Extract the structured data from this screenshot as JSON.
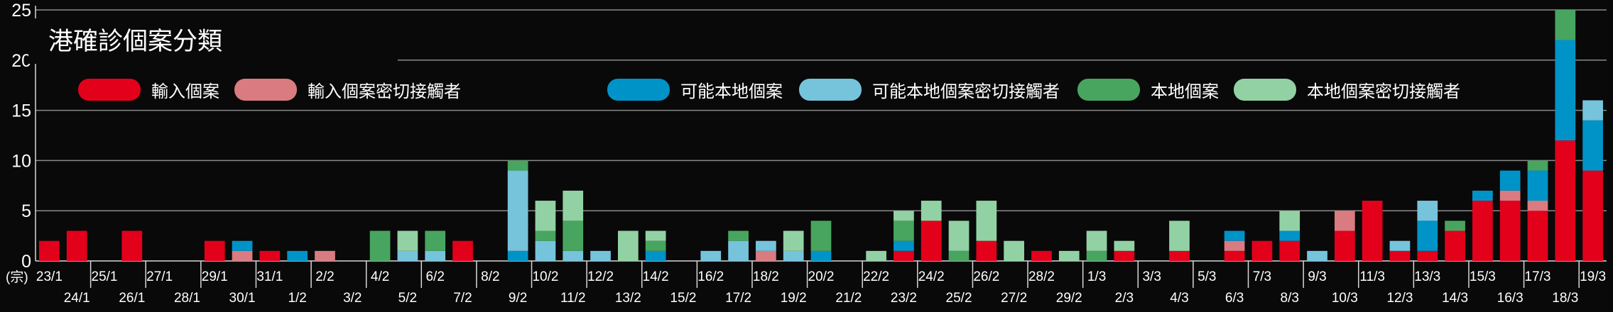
{
  "chart_data": {
    "type": "bar",
    "stacked": true,
    "title": "港確診個案分類",
    "unit_label": "(宗)",
    "ylim": [
      0,
      25
    ],
    "yticks": [
      0,
      5,
      10,
      15,
      20,
      25
    ],
    "grid": true,
    "legend_position": "top",
    "categories": [
      "23/1",
      "24/1",
      "25/1",
      "26/1",
      "27/1",
      "28/1",
      "29/1",
      "30/1",
      "31/1",
      "1/2",
      "2/2",
      "3/2",
      "4/2",
      "5/2",
      "6/2",
      "7/2",
      "8/2",
      "9/2",
      "10/2",
      "11/2",
      "12/2",
      "13/2",
      "14/2",
      "15/2",
      "16/2",
      "17/2",
      "18/2",
      "19/2",
      "20/2",
      "21/2",
      "22/2",
      "23/2",
      "24/2",
      "25/2",
      "26/2",
      "27/2",
      "28/2",
      "29/2",
      "1/3",
      "2/3",
      "3/3",
      "4/3",
      "5/3",
      "6/3",
      "7/3",
      "8/3",
      "9/3",
      "10/3",
      "11/3",
      "12/3",
      "13/3",
      "14/3",
      "15/3",
      "16/3",
      "17/3",
      "18/3",
      "19/3"
    ],
    "series": [
      {
        "name": "輸入個案",
        "color": "#e3001b",
        "values": [
          2,
          3,
          0,
          3,
          0,
          0,
          2,
          0,
          1,
          0,
          0,
          0,
          0,
          0,
          0,
          2,
          0,
          0,
          0,
          0,
          0,
          0,
          0,
          0,
          0,
          0,
          0,
          0,
          0,
          0,
          0,
          1,
          4,
          0,
          2,
          0,
          1,
          0,
          0,
          1,
          0,
          1,
          0,
          1,
          2,
          2,
          0,
          3,
          6,
          1,
          1,
          3,
          6,
          6,
          5,
          12,
          9
        ]
      },
      {
        "name": "輸入個案密切接觸者",
        "color": "#d97b80",
        "values": [
          0,
          0,
          0,
          0,
          0,
          0,
          0,
          1,
          0,
          0,
          1,
          0,
          0,
          0,
          0,
          0,
          0,
          0,
          0,
          0,
          0,
          0,
          0,
          0,
          0,
          0,
          1,
          0,
          0,
          0,
          0,
          0,
          0,
          0,
          0,
          0,
          0,
          0,
          0,
          0,
          0,
          0,
          0,
          1,
          0,
          0,
          0,
          2,
          0,
          0,
          0,
          0,
          0,
          1,
          1,
          0,
          0
        ]
      },
      {
        "name": "可能本地個案",
        "color": "#0093c8",
        "values": [
          0,
          0,
          0,
          0,
          0,
          0,
          0,
          1,
          0,
          1,
          0,
          0,
          0,
          0,
          0,
          0,
          0,
          1,
          0,
          0,
          0,
          0,
          1,
          0,
          0,
          0,
          0,
          0,
          1,
          0,
          0,
          1,
          0,
          0,
          0,
          0,
          0,
          0,
          0,
          0,
          0,
          0,
          0,
          1,
          0,
          1,
          0,
          0,
          0,
          0,
          3,
          0,
          1,
          2,
          3,
          10,
          5
        ]
      },
      {
        "name": "可能本地個案密切接觸者",
        "color": "#76c3dc",
        "values": [
          0,
          0,
          0,
          0,
          0,
          0,
          0,
          0,
          0,
          0,
          0,
          0,
          0,
          1,
          1,
          0,
          0,
          8,
          2,
          1,
          1,
          0,
          0,
          0,
          1,
          2,
          1,
          1,
          0,
          0,
          0,
          0,
          0,
          0,
          0,
          0,
          0,
          0,
          0,
          0,
          0,
          0,
          0,
          0,
          0,
          0,
          1,
          0,
          0,
          1,
          2,
          0,
          0,
          0,
          0,
          0,
          2
        ]
      },
      {
        "name": "本地個案",
        "color": "#48a55f",
        "values": [
          0,
          0,
          0,
          0,
          0,
          0,
          0,
          0,
          0,
          0,
          0,
          0,
          3,
          0,
          2,
          0,
          0,
          1,
          1,
          3,
          0,
          0,
          1,
          0,
          0,
          1,
          0,
          0,
          3,
          0,
          0,
          2,
          0,
          1,
          0,
          0,
          0,
          0,
          1,
          0,
          0,
          0,
          0,
          0,
          0,
          0,
          0,
          0,
          0,
          0,
          0,
          1,
          0,
          0,
          1,
          3,
          0
        ]
      },
      {
        "name": "本地個案密切接觸者",
        "color": "#92d1a4",
        "values": [
          0,
          0,
          0,
          0,
          0,
          0,
          0,
          0,
          0,
          0,
          0,
          0,
          0,
          2,
          0,
          0,
          0,
          0,
          3,
          3,
          0,
          3,
          1,
          0,
          0,
          0,
          0,
          2,
          0,
          0,
          1,
          1,
          2,
          3,
          4,
          2,
          0,
          1,
          2,
          1,
          0,
          3,
          0,
          0,
          0,
          2,
          0,
          0,
          0,
          0,
          0,
          0,
          0,
          0,
          0,
          0,
          0
        ]
      }
    ]
  }
}
